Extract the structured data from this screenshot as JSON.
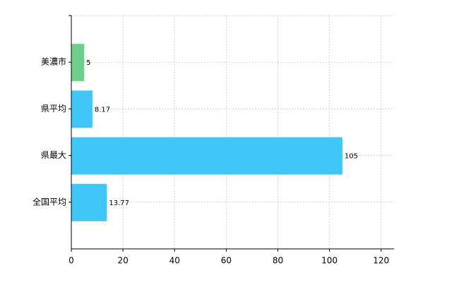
{
  "chart_data": {
    "type": "bar",
    "orientation": "horizontal",
    "categories": [
      "美濃市",
      "県平均",
      "県最大",
      "全国平均"
    ],
    "values": [
      5,
      8.17,
      105,
      13.77
    ],
    "colors": [
      "#6fd08c",
      "#3fc6f6",
      "#3fc6f6",
      "#3fc6f6"
    ],
    "xlim": [
      0,
      125
    ],
    "xticks": [
      0,
      20,
      40,
      60,
      80,
      100,
      120
    ],
    "grid": true
  }
}
